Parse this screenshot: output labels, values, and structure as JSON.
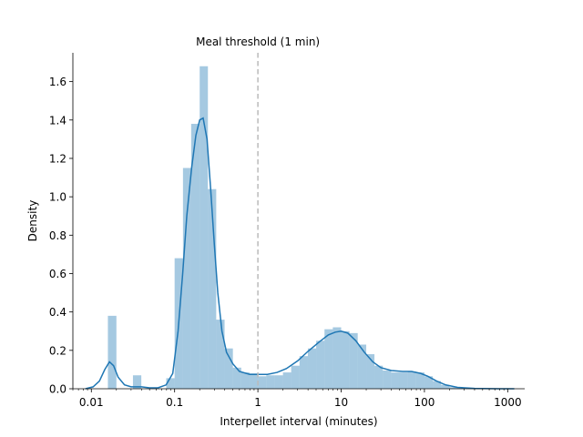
{
  "chart_data": {
    "type": "histogram",
    "x_scale": "log10",
    "xlabel": "Interpellet interval (minutes)",
    "ylabel": "Density",
    "xlim": [
      0.006,
      1600
    ],
    "ylim": [
      0,
      1.75
    ],
    "x_ticks": [
      {
        "value": 0.01,
        "label": "0.01"
      },
      {
        "value": 0.1,
        "label": "0.1"
      },
      {
        "value": 1,
        "label": "1"
      },
      {
        "value": 10,
        "label": "10"
      },
      {
        "value": 100,
        "label": "100"
      },
      {
        "value": 1000,
        "label": "1000"
      }
    ],
    "y_ticks": [
      {
        "value": 0.0,
        "label": "0.0"
      },
      {
        "value": 0.2,
        "label": "0.2"
      },
      {
        "value": 0.4,
        "label": "0.4"
      },
      {
        "value": 0.6,
        "label": "0.6"
      },
      {
        "value": 0.8,
        "label": "0.8"
      },
      {
        "value": 1.0,
        "label": "1.0"
      },
      {
        "value": 1.2,
        "label": "1.2"
      },
      {
        "value": 1.4,
        "label": "1.4"
      },
      {
        "value": 1.6,
        "label": "1.6"
      }
    ],
    "threshold": {
      "x": 1,
      "label": "Meal threshold (1 min)",
      "color": "#bbbbbb"
    },
    "histogram": {
      "color": "#1f77b4",
      "opacity": 0.4,
      "bins": [
        {
          "x0": 0.0158,
          "x1": 0.02,
          "density": 0.38
        },
        {
          "x0": 0.0316,
          "x1": 0.0398,
          "density": 0.07
        },
        {
          "x0": 0.0794,
          "x1": 0.1,
          "density": 0.055
        },
        {
          "x0": 0.1,
          "x1": 0.126,
          "density": 0.68
        },
        {
          "x0": 0.126,
          "x1": 0.158,
          "density": 1.15
        },
        {
          "x0": 0.158,
          "x1": 0.2,
          "density": 1.38
        },
        {
          "x0": 0.2,
          "x1": 0.251,
          "density": 1.68
        },
        {
          "x0": 0.251,
          "x1": 0.316,
          "density": 1.04
        },
        {
          "x0": 0.316,
          "x1": 0.398,
          "density": 0.36
        },
        {
          "x0": 0.398,
          "x1": 0.501,
          "density": 0.21
        },
        {
          "x0": 0.501,
          "x1": 0.631,
          "density": 0.11
        },
        {
          "x0": 0.631,
          "x1": 0.794,
          "density": 0.085
        },
        {
          "x0": 0.794,
          "x1": 1.0,
          "density": 0.08
        },
        {
          "x0": 1.0,
          "x1": 1.26,
          "density": 0.065
        },
        {
          "x0": 1.26,
          "x1": 1.58,
          "density": 0.07
        },
        {
          "x0": 1.58,
          "x1": 2.0,
          "density": 0.07
        },
        {
          "x0": 2.0,
          "x1": 2.51,
          "density": 0.085
        },
        {
          "x0": 2.51,
          "x1": 3.16,
          "density": 0.12
        },
        {
          "x0": 3.16,
          "x1": 3.98,
          "density": 0.17
        },
        {
          "x0": 3.98,
          "x1": 5.01,
          "density": 0.21
        },
        {
          "x0": 5.01,
          "x1": 6.31,
          "density": 0.25
        },
        {
          "x0": 6.31,
          "x1": 7.94,
          "density": 0.31
        },
        {
          "x0": 7.94,
          "x1": 10.0,
          "density": 0.32
        },
        {
          "x0": 10.0,
          "x1": 12.6,
          "density": 0.3
        },
        {
          "x0": 12.6,
          "x1": 15.8,
          "density": 0.29
        },
        {
          "x0": 15.8,
          "x1": 20.0,
          "density": 0.23
        },
        {
          "x0": 20.0,
          "x1": 25.1,
          "density": 0.18
        },
        {
          "x0": 25.1,
          "x1": 31.6,
          "density": 0.12
        },
        {
          "x0": 31.6,
          "x1": 39.8,
          "density": 0.095
        },
        {
          "x0": 39.8,
          "x1": 50.1,
          "density": 0.085
        },
        {
          "x0": 50.1,
          "x1": 63.1,
          "density": 0.085
        },
        {
          "x0": 63.1,
          "x1": 79.4,
          "density": 0.09
        },
        {
          "x0": 79.4,
          "x1": 100,
          "density": 0.085
        },
        {
          "x0": 100,
          "x1": 126,
          "density": 0.065
        },
        {
          "x0": 126,
          "x1": 158,
          "density": 0.04
        },
        {
          "x0": 158,
          "x1": 200,
          "density": 0.02
        },
        {
          "x0": 200,
          "x1": 251,
          "density": 0.008
        },
        {
          "x0": 251,
          "x1": 316,
          "density": 0.004
        }
      ]
    },
    "kde": {
      "color": "#1f77b4",
      "points": [
        [
          0.0085,
          0.0
        ],
        [
          0.0105,
          0.01
        ],
        [
          0.0125,
          0.04
        ],
        [
          0.0145,
          0.1
        ],
        [
          0.0165,
          0.14
        ],
        [
          0.0185,
          0.12
        ],
        [
          0.021,
          0.06
        ],
        [
          0.025,
          0.02
        ],
        [
          0.03,
          0.01
        ],
        [
          0.04,
          0.01
        ],
        [
          0.05,
          0.005
        ],
        [
          0.063,
          0.005
        ],
        [
          0.079,
          0.02
        ],
        [
          0.095,
          0.08
        ],
        [
          0.11,
          0.3
        ],
        [
          0.125,
          0.6
        ],
        [
          0.14,
          0.9
        ],
        [
          0.16,
          1.15
        ],
        [
          0.18,
          1.32
        ],
        [
          0.2,
          1.4
        ],
        [
          0.22,
          1.41
        ],
        [
          0.245,
          1.3
        ],
        [
          0.27,
          1.05
        ],
        [
          0.3,
          0.75
        ],
        [
          0.33,
          0.5
        ],
        [
          0.37,
          0.3
        ],
        [
          0.42,
          0.19
        ],
        [
          0.5,
          0.13
        ],
        [
          0.6,
          0.09
        ],
        [
          0.8,
          0.075
        ],
        [
          1.0,
          0.075
        ],
        [
          1.3,
          0.075
        ],
        [
          1.7,
          0.085
        ],
        [
          2.2,
          0.105
        ],
        [
          3.0,
          0.145
        ],
        [
          4.0,
          0.195
        ],
        [
          5.5,
          0.245
        ],
        [
          7.0,
          0.28
        ],
        [
          8.5,
          0.295
        ],
        [
          10.0,
          0.3
        ],
        [
          12.0,
          0.29
        ],
        [
          15.0,
          0.25
        ],
        [
          19.0,
          0.19
        ],
        [
          24.0,
          0.14
        ],
        [
          30.0,
          0.11
        ],
        [
          40.0,
          0.095
        ],
        [
          55.0,
          0.09
        ],
        [
          70.0,
          0.09
        ],
        [
          90.0,
          0.08
        ],
        [
          110.0,
          0.065
        ],
        [
          140.0,
          0.04
        ],
        [
          180.0,
          0.02
        ],
        [
          250.0,
          0.007
        ],
        [
          400.0,
          0.002
        ],
        [
          800.0,
          0.0
        ],
        [
          1200.0,
          0.0
        ]
      ]
    }
  }
}
